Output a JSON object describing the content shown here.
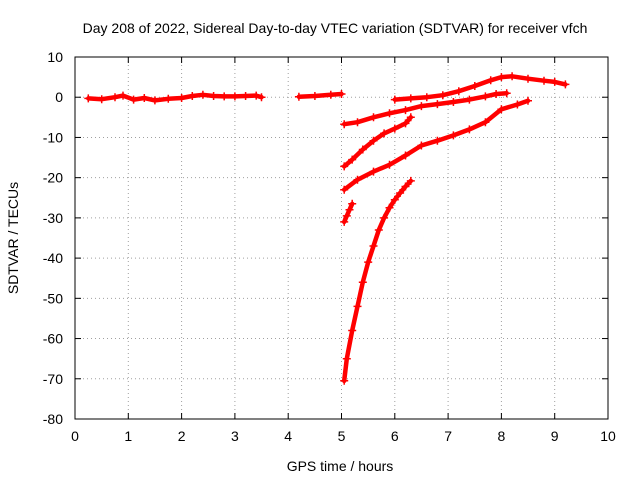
{
  "chart_data": {
    "type": "scatter",
    "title": "Day 208 of 2022, Sidereal Day-to-day VTEC variation (SDTVAR) for receiver vfch",
    "xlabel": "GPS time / hours",
    "ylabel": "SDTVAR / TECUs",
    "xlim": [
      0,
      10
    ],
    "ylim": [
      -80,
      10
    ],
    "x_ticks": [
      0,
      1,
      2,
      3,
      4,
      5,
      6,
      7,
      8,
      9,
      10
    ],
    "y_ticks": [
      10,
      0,
      -10,
      -20,
      -30,
      -40,
      -50,
      -60,
      -70,
      -80
    ],
    "grid": true,
    "legend": "none",
    "marker": "+",
    "series": [
      {
        "color": "#ff0000",
        "segments": [
          [
            [
              0.25,
              -0.3
            ],
            [
              0.5,
              -0.5
            ],
            [
              0.75,
              0.0
            ],
            [
              0.9,
              0.4
            ],
            [
              1.1,
              -0.6
            ],
            [
              1.3,
              -0.2
            ],
            [
              1.5,
              -0.8
            ],
            [
              1.75,
              -0.4
            ],
            [
              2.0,
              -0.2
            ],
            [
              2.2,
              0.3
            ],
            [
              2.4,
              0.6
            ],
            [
              2.6,
              0.3
            ],
            [
              2.8,
              0.2
            ],
            [
              3.0,
              0.2
            ],
            [
              3.2,
              0.3
            ],
            [
              3.4,
              0.4
            ],
            [
              3.5,
              0.0
            ]
          ],
          [
            [
              4.2,
              0.1
            ],
            [
              4.5,
              0.3
            ],
            [
              4.8,
              0.6
            ],
            [
              5.0,
              0.8
            ]
          ],
          [
            [
              5.05,
              -6.7
            ],
            [
              5.3,
              -6.2
            ],
            [
              5.6,
              -5.0
            ],
            [
              5.9,
              -4.0
            ],
            [
              6.2,
              -3.2
            ],
            [
              6.5,
              -2.2
            ],
            [
              6.8,
              -1.7
            ],
            [
              7.1,
              -1.2
            ],
            [
              7.4,
              -0.6
            ],
            [
              7.7,
              0.2
            ],
            [
              7.9,
              0.8
            ],
            [
              8.1,
              1.0
            ]
          ],
          [
            [
              6.0,
              -0.6
            ],
            [
              6.3,
              -0.3
            ],
            [
              6.6,
              0.0
            ],
            [
              6.9,
              0.5
            ],
            [
              7.2,
              1.5
            ],
            [
              7.5,
              2.8
            ],
            [
              7.8,
              4.2
            ],
            [
              8.0,
              5.0
            ],
            [
              8.2,
              5.2
            ],
            [
              8.5,
              4.6
            ],
            [
              8.8,
              4.1
            ],
            [
              9.0,
              3.8
            ],
            [
              9.2,
              3.2
            ]
          ],
          [
            [
              5.05,
              -17.2
            ],
            [
              5.2,
              -15.5
            ],
            [
              5.4,
              -13.0
            ],
            [
              5.6,
              -10.8
            ],
            [
              5.8,
              -9.0
            ],
            [
              6.0,
              -7.8
            ],
            [
              6.2,
              -6.5
            ],
            [
              6.3,
              -5.0
            ]
          ],
          [
            [
              5.05,
              -23.0
            ],
            [
              5.3,
              -20.5
            ],
            [
              5.6,
              -18.5
            ],
            [
              5.9,
              -16.8
            ],
            [
              6.2,
              -14.5
            ],
            [
              6.5,
              -12.0
            ],
            [
              6.8,
              -10.8
            ],
            [
              7.1,
              -9.5
            ],
            [
              7.4,
              -8.0
            ],
            [
              7.7,
              -6.2
            ],
            [
              8.0,
              -3.0
            ],
            [
              8.3,
              -1.8
            ],
            [
              8.5,
              -0.9
            ]
          ],
          [
            [
              5.05,
              -31.0
            ],
            [
              5.1,
              -29.5
            ],
            [
              5.15,
              -28.0
            ],
            [
              5.2,
              -26.5
            ]
          ],
          [
            [
              5.05,
              -70.5
            ],
            [
              5.1,
              -65.0
            ],
            [
              5.2,
              -58.0
            ],
            [
              5.3,
              -52.0
            ],
            [
              5.4,
              -46.0
            ],
            [
              5.5,
              -41.0
            ],
            [
              5.6,
              -37.0
            ],
            [
              5.7,
              -33.0
            ],
            [
              5.8,
              -30.0
            ],
            [
              5.9,
              -27.5
            ],
            [
              6.0,
              -25.5
            ],
            [
              6.1,
              -23.8
            ],
            [
              6.2,
              -22.2
            ],
            [
              6.3,
              -20.8
            ]
          ]
        ]
      }
    ]
  }
}
